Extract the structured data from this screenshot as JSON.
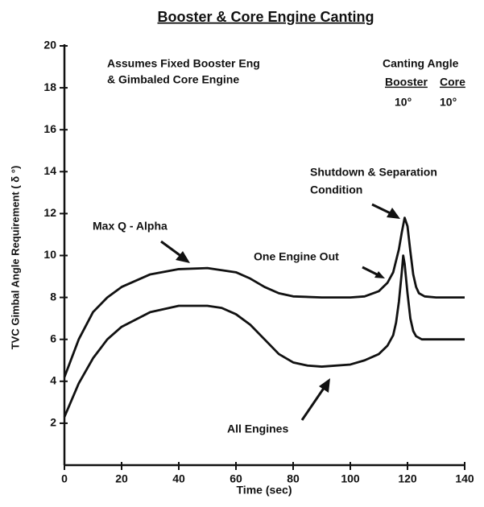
{
  "chart_data": {
    "type": "line",
    "title": "Booster & Core Engine Canting",
    "x_label": "Time (sec)",
    "y_label": "TVC Gimbal Angle Requirement ( δ °)",
    "xlim": [
      0,
      140
    ],
    "xticks": [
      0,
      20,
      40,
      60,
      80,
      100,
      120,
      140
    ],
    "ylim": [
      0,
      20
    ],
    "yticks": [
      2,
      4,
      6,
      8,
      10,
      12,
      14,
      16,
      18,
      20
    ],
    "notes": [
      "Assumes Fixed Booster Eng",
      "& Gimbaled Core Engine"
    ],
    "canting": {
      "title": "Canting Angle",
      "booster_label": "Booster",
      "core_label": "Core",
      "booster_value": "10°",
      "core_value": "10°"
    },
    "annotations": [
      "Shutdown & Separation",
      "Condition",
      "Max Q - Alpha"
    ],
    "series": [
      {
        "name": "One Engine Out",
        "color": "#111111",
        "x": [
          0,
          5,
          10,
          15,
          20,
          30,
          40,
          50,
          60,
          65,
          70,
          75,
          80,
          90,
          100,
          105,
          110,
          113,
          115,
          117,
          118,
          119,
          120,
          121,
          122,
          123,
          124,
          126,
          130,
          140
        ],
        "values": [
          4.2,
          6.0,
          7.3,
          8.0,
          8.5,
          9.1,
          9.35,
          9.4,
          9.2,
          8.9,
          8.5,
          8.2,
          8.05,
          8.0,
          8.0,
          8.05,
          8.3,
          8.7,
          9.2,
          10.3,
          11.1,
          11.8,
          11.4,
          10.2,
          9.1,
          8.5,
          8.2,
          8.05,
          8.0,
          8.0
        ]
      },
      {
        "name": "All Engines",
        "color": "#111111",
        "x": [
          0,
          5,
          10,
          15,
          20,
          30,
          40,
          50,
          55,
          60,
          65,
          70,
          75,
          80,
          85,
          90,
          100,
          105,
          110,
          113,
          115,
          116,
          117,
          118,
          118.5,
          119,
          120,
          121,
          122,
          123,
          125,
          130,
          140
        ],
        "values": [
          2.3,
          3.9,
          5.1,
          6.0,
          6.6,
          7.3,
          7.6,
          7.6,
          7.5,
          7.2,
          6.7,
          6.0,
          5.3,
          4.9,
          4.75,
          4.7,
          4.8,
          5.0,
          5.3,
          5.7,
          6.2,
          6.8,
          7.8,
          9.2,
          10.0,
          9.6,
          8.2,
          7.0,
          6.4,
          6.15,
          6.0,
          6.0,
          6.0
        ]
      }
    ]
  }
}
